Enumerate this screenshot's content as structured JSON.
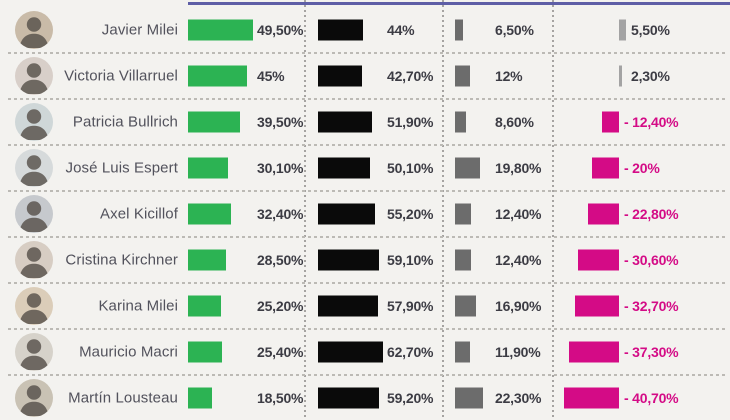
{
  "chart_data": {
    "type": "bar",
    "orientation": "horizontal",
    "title": "",
    "legend": "none",
    "grid": "dashed-row-and-column-separators",
    "accent_line_color": "#5e5ea6",
    "value_text_color": "#3c3c44",
    "negative_text_color": "#d40b86",
    "categories": [
      "Javier Milei",
      "Victoria Villarruel",
      "Patricia Bullrich",
      "José Luis Espert",
      "Axel Kicillof",
      "Cristina Kirchner",
      "Karina Milei",
      "Mauricio Macri",
      "Martín Lousteau"
    ],
    "series": [
      {
        "name": "positive",
        "color": "#2cb353",
        "values": [
          49.5,
          45,
          39.5,
          30.1,
          32.4,
          28.5,
          25.2,
          25.4,
          18.5
        ],
        "labels": [
          "49,50%",
          "45%",
          "39,50%",
          "30,10%",
          "32,40%",
          "28,50%",
          "25,20%",
          "25,40%",
          "18,50%"
        ]
      },
      {
        "name": "negative",
        "color": "#0a0a0a",
        "values": [
          44,
          42.7,
          51.9,
          50.1,
          55.2,
          59.1,
          57.9,
          62.7,
          59.2
        ],
        "labels": [
          "44%",
          "42,70%",
          "51,90%",
          "50,10%",
          "55,20%",
          "59,10%",
          "57,90%",
          "62,70%",
          "59,20%"
        ]
      },
      {
        "name": "unknown",
        "color": "#6c6c6c",
        "values": [
          6.5,
          12,
          8.6,
          19.8,
          12.4,
          12.4,
          16.9,
          11.9,
          22.3
        ],
        "labels": [
          "6,50%",
          "12%",
          "8,60%",
          "19,80%",
          "12,40%",
          "12,40%",
          "16,90%",
          "11,90%",
          "22,30%"
        ]
      },
      {
        "name": "difference",
        "color_negative": "#d40b86",
        "color_positive": "#a3a3a3",
        "values": [
          5.5,
          2.3,
          -12.4,
          -20,
          -22.8,
          -30.6,
          -32.7,
          -37.3,
          -40.7
        ],
        "labels": [
          "5,50%",
          "2,30%",
          "- 12,40%",
          "- 20%",
          "- 22,80%",
          "- 30,60%",
          "- 32,70%",
          "- 37,30%",
          "- 40,70%"
        ]
      }
    ]
  }
}
